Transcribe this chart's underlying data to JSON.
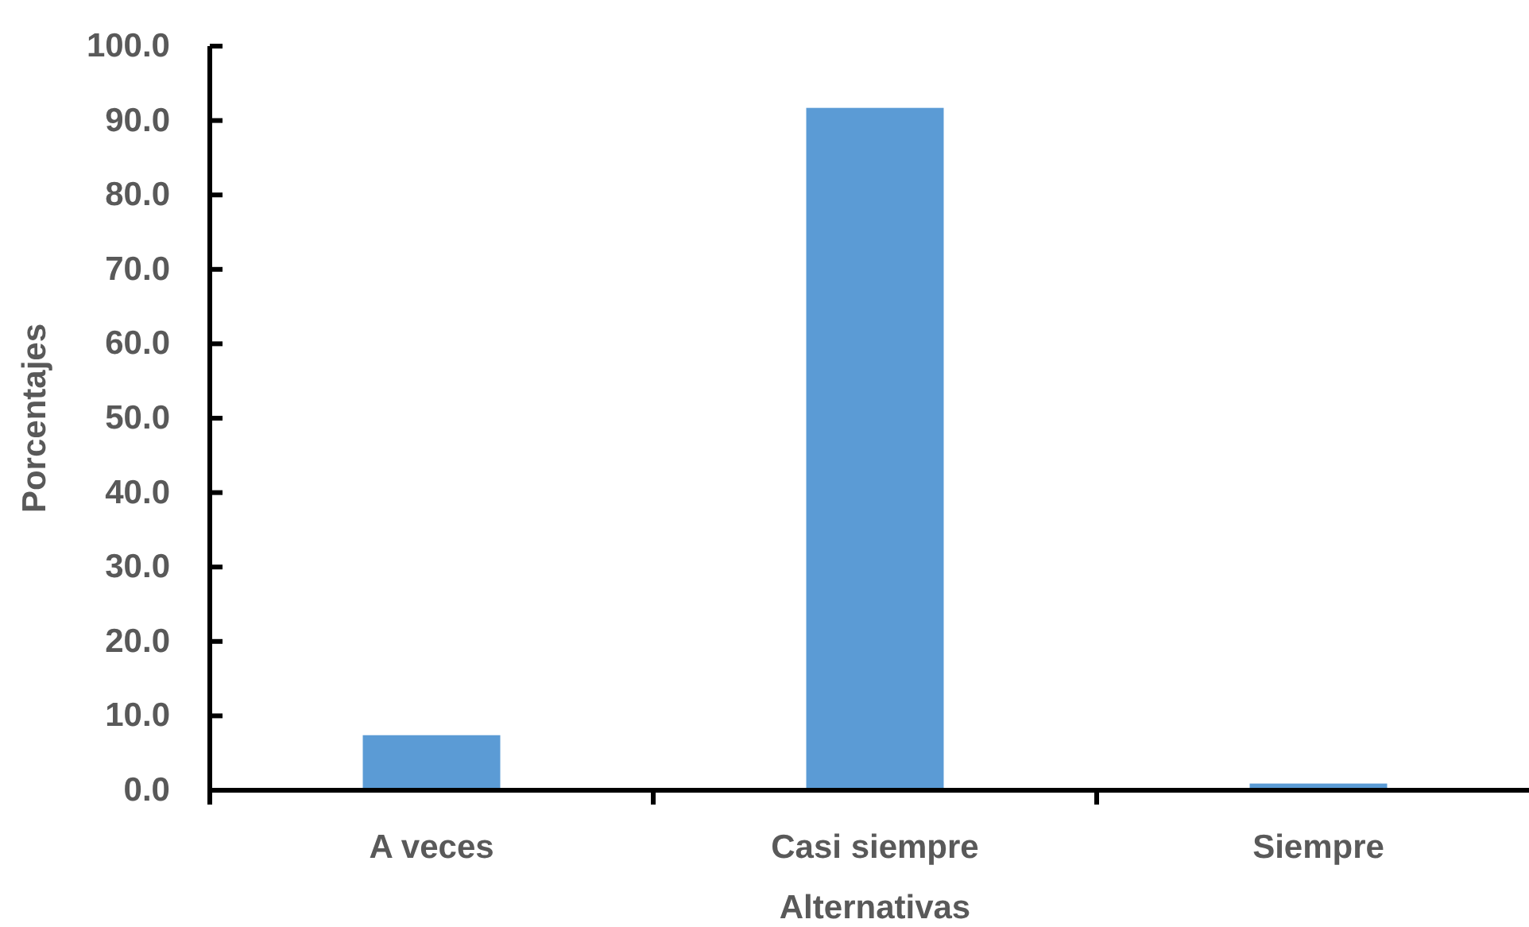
{
  "chart_data": {
    "type": "bar",
    "xlabel": "Alternativas",
    "ylabel": "Porcentajes",
    "categories": [
      "A veces",
      "Casi siempre",
      "Siempre"
    ],
    "values": [
      7.4,
      91.7,
      0.9
    ],
    "color": "#5b9bd5",
    "ylim": [
      0,
      100
    ],
    "yticks": [
      {
        "value": 0,
        "label": "0.0"
      },
      {
        "value": 10,
        "label": "10.0"
      },
      {
        "value": 20,
        "label": "20.0"
      },
      {
        "value": 30,
        "label": "30.0"
      },
      {
        "value": 40,
        "label": "40.0"
      },
      {
        "value": 50,
        "label": "50.0"
      },
      {
        "value": 60,
        "label": "60.0"
      },
      {
        "value": 70,
        "label": "70.0"
      },
      {
        "value": 80,
        "label": "80.0"
      },
      {
        "value": 90,
        "label": "90.0"
      },
      {
        "value": 100,
        "label": "100.0"
      }
    ]
  }
}
